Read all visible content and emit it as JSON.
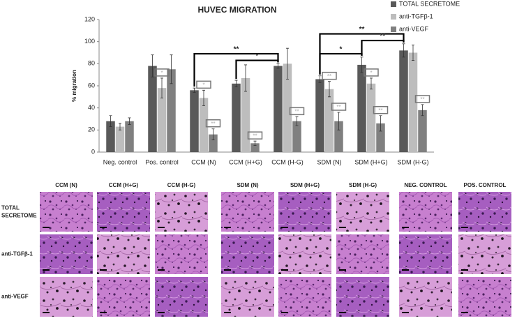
{
  "chart_data": {
    "type": "bar",
    "title": "HUVEC MIGRATION",
    "y_label": "% migration",
    "categories": [
      "Neg. control",
      "Pos. control",
      "CCM (N)",
      "CCM (H+G)",
      "CCM (H-G)",
      "SDM (N)",
      "SDM (H+G)",
      "SDM (H-G)"
    ],
    "series": [
      {
        "name": "TOTAL SECRETOME",
        "color": "#595959",
        "values": [
          28,
          78,
          56,
          62,
          78,
          66,
          79,
          92
        ],
        "errors": [
          5,
          10,
          2,
          3,
          2,
          3,
          7,
          6
        ]
      },
      {
        "name": "anti-TGFβ-1",
        "color": "#bdbdbd",
        "values": [
          23,
          58,
          49,
          67,
          80,
          57,
          62,
          90
        ],
        "errors": [
          3,
          9,
          7,
          12,
          14,
          7,
          5,
          7
        ]
      },
      {
        "name": "anti-VEGF",
        "color": "#808080",
        "values": [
          28,
          75,
          16,
          8,
          28,
          28,
          26,
          38
        ],
        "errors": [
          3,
          13,
          5,
          2,
          4,
          8,
          7,
          5
        ]
      }
    ],
    "ylim": [
      0,
      120
    ],
    "yticks": [
      0,
      20,
      40,
      60,
      80,
      100,
      120
    ],
    "grid": false,
    "legend": "top-right",
    "brackets": [
      {
        "label": "**",
        "from": "CCM (N)",
        "to": "CCM (H-G)"
      },
      {
        "label": "*",
        "from": "CCM (H+G)",
        "to": "CCM (H-G)"
      },
      {
        "label": "**",
        "from": "SDM (N)",
        "to": "SDM (H-G)"
      },
      {
        "label": "*",
        "from": "SDM (N)",
        "to": "SDM (H+G)"
      },
      {
        "label": "**",
        "from": "SDM (H+G)",
        "to": "SDM (H-G)"
      }
    ],
    "marks": [
      {
        "label": "*",
        "category": "Pos. control",
        "series": "anti-TGFβ-1"
      },
      {
        "label": "*",
        "category": "CCM (N)",
        "series": "anti-TGFβ-1"
      },
      {
        "label": "**",
        "category": "CCM (N)",
        "series": "anti-VEGF"
      },
      {
        "label": "**",
        "category": "CCM (H+G)",
        "series": "anti-VEGF"
      },
      {
        "label": "**",
        "category": "CCM (H-G)",
        "series": "anti-VEGF"
      },
      {
        "label": "**",
        "category": "SDM (N)",
        "series": "anti-TGFβ-1"
      },
      {
        "label": "**",
        "category": "SDM (N)",
        "series": "anti-VEGF"
      },
      {
        "label": "*",
        "category": "SDM (H+G)",
        "series": "anti-TGFβ-1"
      },
      {
        "label": "**",
        "category": "SDM (H+G)",
        "series": "anti-VEGF"
      },
      {
        "label": "**",
        "category": "SDM (H-G)",
        "series": "anti-VEGF"
      }
    ]
  },
  "micrographs": {
    "columns": [
      "CCM (N)",
      "CCM (H+G)",
      "CCM (H-G)",
      "SDM (N)",
      "SDM (H+G)",
      "SDM (H-G)",
      "NEG. CONTROL",
      "POS. CONTROL"
    ],
    "rows": [
      "TOTAL SECRETOME",
      "anti-TGFβ-1",
      "anti-VEGF"
    ]
  }
}
